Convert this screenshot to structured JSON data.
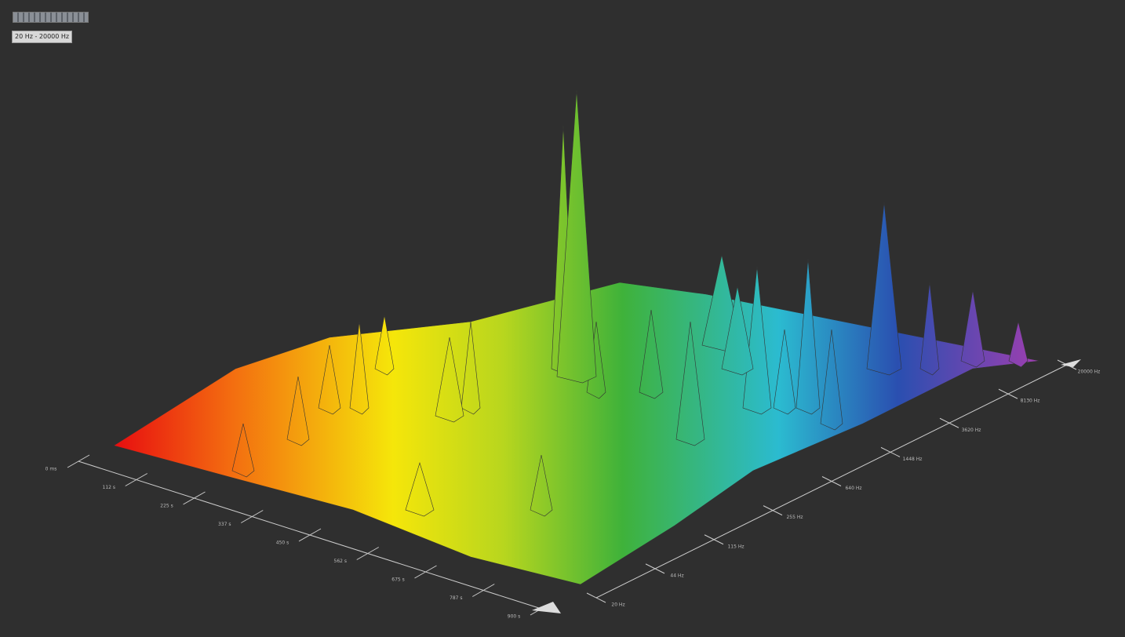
{
  "toolbar": {
    "range_button": "20 Hz - 20000 Hz"
  },
  "plot": {
    "time_axis": {
      "ticks": [
        "0 ms",
        "112 s",
        "225 s",
        "337 s",
        "450 s",
        "562 s",
        "675 s",
        "787 s",
        "900 s"
      ]
    },
    "frequency_axis": {
      "ticks": [
        "20 Hz",
        "44 Hz",
        "115 Hz",
        "255 Hz",
        "640 Hz",
        "1448 Hz",
        "3620 Hz",
        "8130 Hz",
        "20000 Hz"
      ]
    }
  }
}
